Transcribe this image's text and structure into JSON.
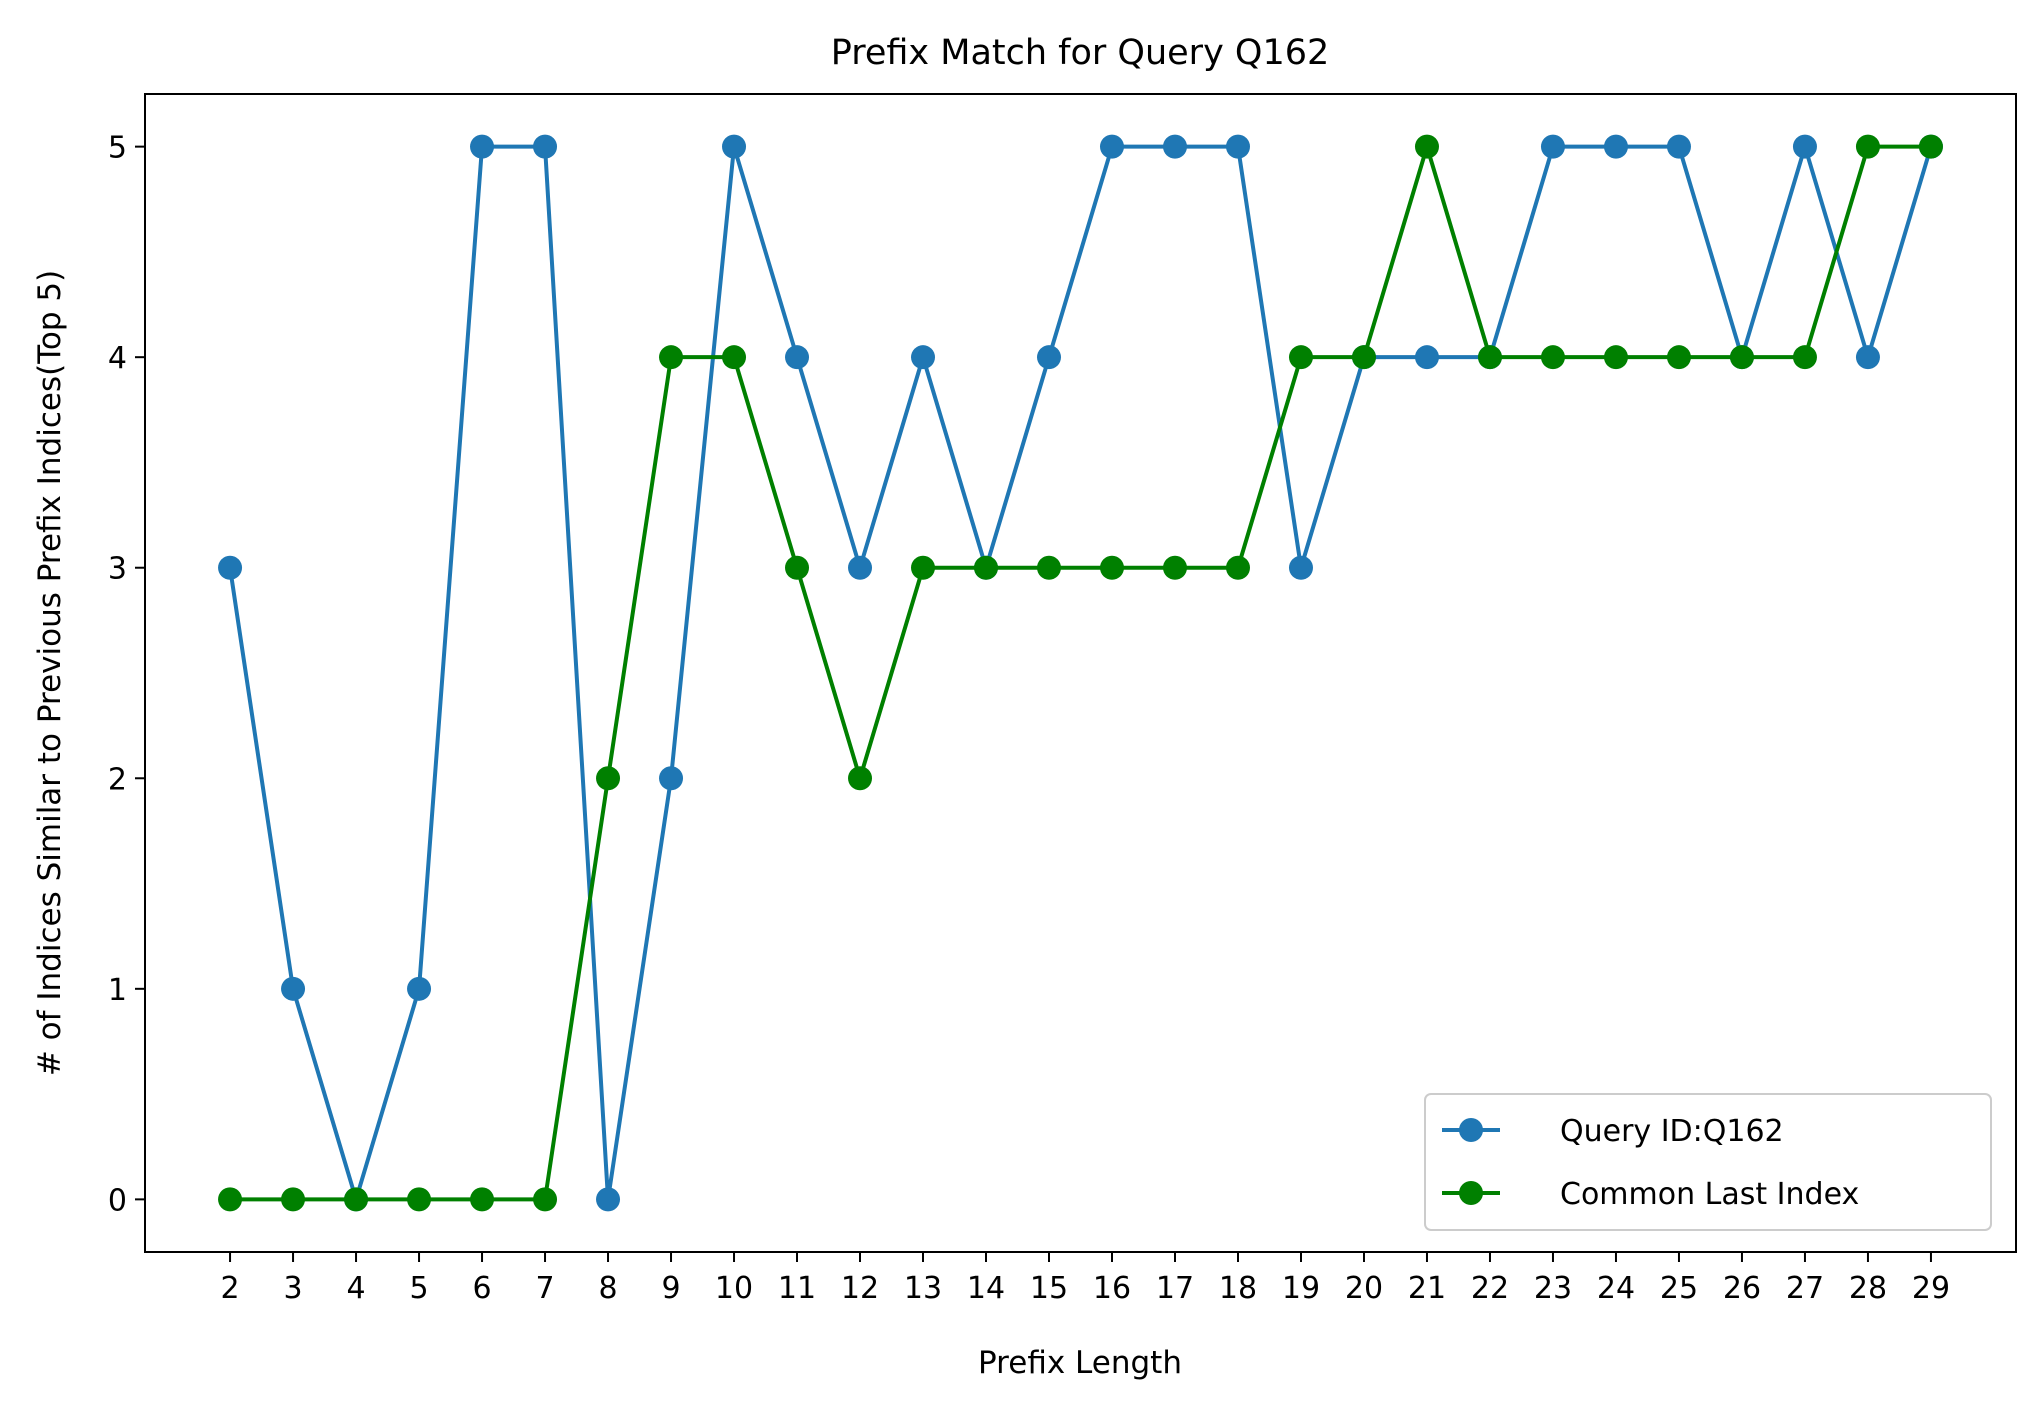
{
  "chart_data": {
    "type": "line",
    "title": "Prefix Match for Query Q162",
    "xlabel": "Prefix Length",
    "ylabel": "# of Indices Similar to Previous Prefix Indices(Top 5)",
    "x": [
      2,
      3,
      4,
      5,
      6,
      7,
      8,
      9,
      10,
      11,
      12,
      13,
      14,
      15,
      16,
      17,
      18,
      19,
      20,
      21,
      22,
      23,
      24,
      25,
      26,
      27,
      28,
      29
    ],
    "xlim": [
      0.65,
      30.35
    ],
    "ylim": [
      -0.25,
      5.25
    ],
    "yticks": [
      0,
      1,
      2,
      3,
      4,
      5
    ],
    "grid": false,
    "legend_position": "lower-right",
    "series": [
      {
        "name": "Query ID:Q162",
        "color": "#1f77b4",
        "values": [
          3,
          1,
          0,
          1,
          5,
          5,
          0,
          2,
          5,
          4,
          3,
          4,
          3,
          4,
          5,
          5,
          5,
          3,
          4,
          4,
          4,
          5,
          5,
          5,
          4,
          5,
          4,
          5
        ]
      },
      {
        "name": "Common Last Index",
        "color": "#008000",
        "values": [
          0,
          0,
          0,
          0,
          0,
          0,
          2,
          4,
          4,
          3,
          2,
          3,
          3,
          3,
          3,
          3,
          3,
          4,
          4,
          5,
          4,
          4,
          4,
          4,
          4,
          4,
          5,
          5
        ]
      }
    ]
  }
}
